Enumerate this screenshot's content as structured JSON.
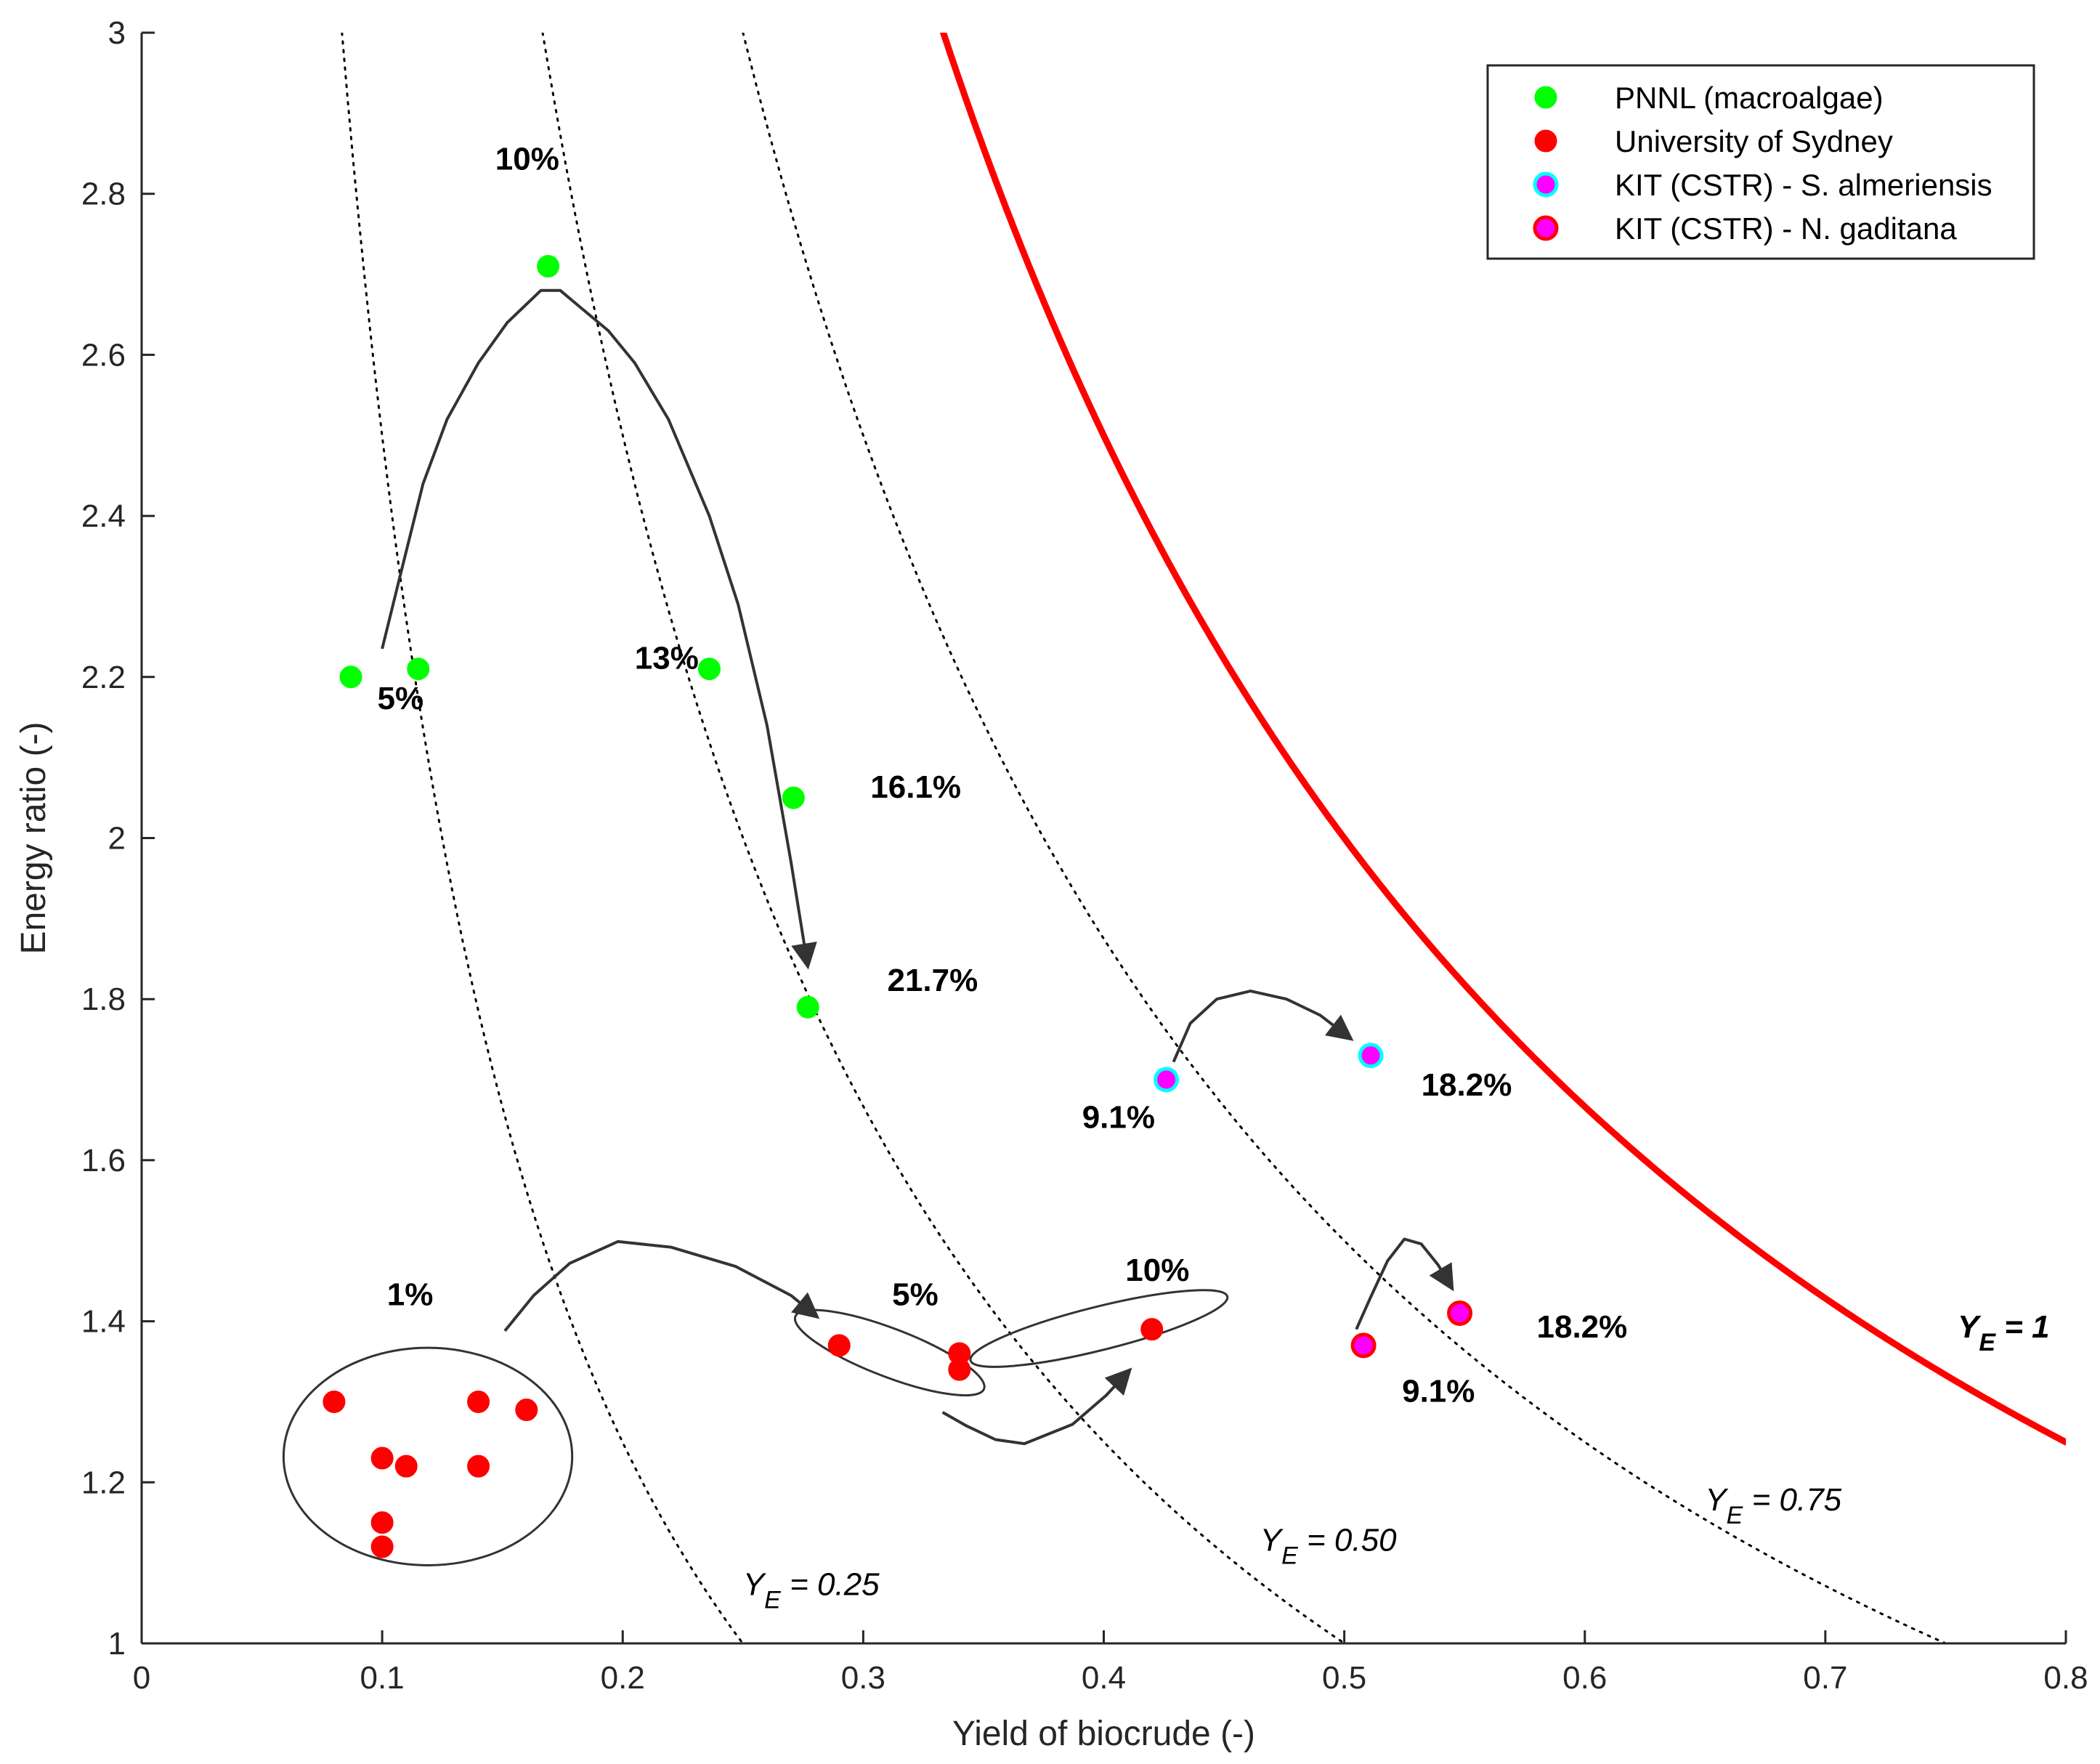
{
  "chart_data": {
    "type": "scatter",
    "xlabel": "Yield of biocrude (-)",
    "ylabel": "Energy ratio (-)",
    "xlim": [
      0,
      0.8
    ],
    "ylim": [
      1,
      3
    ],
    "xticks": [
      {
        "value": 0,
        "label": "0"
      },
      {
        "value": 0.1,
        "label": "0.1"
      },
      {
        "value": 0.2,
        "label": "0.2"
      },
      {
        "value": 0.3,
        "label": "0.3"
      },
      {
        "value": 0.4,
        "label": "0.4"
      },
      {
        "value": 0.5,
        "label": "0.5"
      },
      {
        "value": 0.6,
        "label": "0.6"
      },
      {
        "value": 0.7,
        "label": "0.7"
      },
      {
        "value": 0.8,
        "label": "0.8"
      }
    ],
    "yticks": [
      {
        "value": 1,
        "label": "1"
      },
      {
        "value": 1.2,
        "label": "1.2"
      },
      {
        "value": 1.4,
        "label": "1.4"
      },
      {
        "value": 1.6,
        "label": "1.6"
      },
      {
        "value": 1.8,
        "label": "1.8"
      },
      {
        "value": 2,
        "label": "2"
      },
      {
        "value": 2.2,
        "label": "2.2"
      },
      {
        "value": 2.4,
        "label": "2.4"
      },
      {
        "value": 2.6,
        "label": "2.6"
      },
      {
        "value": 2.8,
        "label": "2.8"
      },
      {
        "value": 3,
        "label": "3"
      }
    ],
    "legend_position": "top-right",
    "series": [
      {
        "name": "PNNL (macroalgae)",
        "fill": "#00ff00",
        "edge": "#00ff00",
        "points": [
          [
            0.087,
            2.2
          ],
          [
            0.115,
            2.21
          ],
          [
            0.169,
            2.71
          ],
          [
            0.236,
            2.21
          ],
          [
            0.271,
            2.05
          ],
          [
            0.277,
            1.79
          ]
        ]
      },
      {
        "name": "University of Sydney",
        "fill": "#ff0000",
        "edge": "#ff0000",
        "points": [
          [
            0.08,
            1.3
          ],
          [
            0.1,
            1.23
          ],
          [
            0.11,
            1.22
          ],
          [
            0.1,
            1.15
          ],
          [
            0.1,
            1.12
          ],
          [
            0.14,
            1.3
          ],
          [
            0.14,
            1.22
          ],
          [
            0.16,
            1.29
          ],
          [
            0.29,
            1.37
          ],
          [
            0.34,
            1.36
          ],
          [
            0.34,
            1.34
          ],
          [
            0.42,
            1.39
          ]
        ]
      },
      {
        "name": "KIT (CSTR) - S. almeriensis",
        "fill": "#ff00ff",
        "edge": "#00ffff",
        "points": [
          [
            0.426,
            1.7
          ],
          [
            0.511,
            1.73
          ]
        ]
      },
      {
        "name": "KIT (CSTR) - N. gaditana",
        "fill": "#ff00ff",
        "edge": "#ff0000",
        "points": [
          [
            0.508,
            1.37
          ],
          [
            0.548,
            1.41
          ]
        ]
      }
    ],
    "iso_curves": [
      {
        "ye": 0.25,
        "label_main": "Y",
        "label_sub": "E",
        "label_rest": " = 0.25",
        "color": "#000000",
        "style": "dotted",
        "x0": 0.0833
      },
      {
        "ye": 0.5,
        "label_main": "Y",
        "label_sub": "E",
        "label_rest": " = 0.50",
        "color": "#000000",
        "style": "dotted",
        "x0": 0.1667
      },
      {
        "ye": 0.75,
        "label_main": "Y",
        "label_sub": "E",
        "label_rest": " = 0.75",
        "color": "#000000",
        "style": "dotted",
        "x0": 0.25
      },
      {
        "ye": 1.0,
        "label_main": "Y",
        "label_sub": "E",
        "label_rest": " = 1",
        "color": "#ff0000",
        "style": "solid",
        "x0": 0.3333
      }
    ],
    "annotations": [
      {
        "text": "10%",
        "x": 0.147,
        "y": 2.83
      },
      {
        "text": "5%",
        "x": 0.098,
        "y": 2.16
      },
      {
        "text": "13%",
        "x": 0.205,
        "y": 2.21
      },
      {
        "text": "16.1%",
        "x": 0.303,
        "y": 2.05
      },
      {
        "text": "21.7%",
        "x": 0.31,
        "y": 1.81
      },
      {
        "text": "9.1%",
        "x": 0.391,
        "y": 1.64
      },
      {
        "text": "18.2%",
        "x": 0.532,
        "y": 1.68
      },
      {
        "text": "1%",
        "x": 0.102,
        "y": 1.42
      },
      {
        "text": "5%",
        "x": 0.312,
        "y": 1.42
      },
      {
        "text": "10%",
        "x": 0.409,
        "y": 1.45
      },
      {
        "text": "9.1%",
        "x": 0.524,
        "y": 1.3
      },
      {
        "text": "18.2%",
        "x": 0.58,
        "y": 1.38
      }
    ],
    "arrows": [
      {
        "points": [
          [
            0.1,
            2.235
          ],
          [
            0.107,
            2.32
          ],
          [
            0.117,
            2.44
          ],
          [
            0.127,
            2.52
          ],
          [
            0.14,
            2.59
          ],
          [
            0.152,
            2.64
          ],
          [
            0.166,
            2.68
          ],
          [
            0.174,
            2.68
          ],
          [
            0.182,
            2.66
          ],
          [
            0.194,
            2.63
          ],
          [
            0.205,
            2.59
          ],
          [
            0.219,
            2.52
          ],
          [
            0.236,
            2.4
          ],
          [
            0.248,
            2.29
          ],
          [
            0.26,
            2.14
          ],
          [
            0.27,
            1.97
          ],
          [
            0.277,
            1.84
          ]
        ]
      },
      {
        "points": [
          [
            0.429,
            1.722
          ],
          [
            0.436,
            1.77
          ],
          [
            0.447,
            1.8
          ],
          [
            0.461,
            1.81
          ],
          [
            0.476,
            1.8
          ],
          [
            0.49,
            1.78
          ],
          [
            0.503,
            1.75
          ]
        ]
      },
      {
        "points": [
          [
            0.151,
            1.388
          ],
          [
            0.163,
            1.432
          ],
          [
            0.178,
            1.472
          ],
          [
            0.198,
            1.499
          ],
          [
            0.22,
            1.492
          ],
          [
            0.247,
            1.468
          ],
          [
            0.27,
            1.432
          ],
          [
            0.281,
            1.405
          ]
        ]
      },
      {
        "points": [
          [
            0.333,
            1.287
          ],
          [
            0.343,
            1.27
          ],
          [
            0.355,
            1.253
          ],
          [
            0.367,
            1.248
          ],
          [
            0.387,
            1.272
          ],
          [
            0.401,
            1.308
          ],
          [
            0.411,
            1.34
          ]
        ]
      },
      {
        "points": [
          [
            0.505,
            1.39
          ],
          [
            0.511,
            1.43
          ],
          [
            0.518,
            1.475
          ],
          [
            0.525,
            1.502
          ],
          [
            0.532,
            1.496
          ],
          [
            0.539,
            1.47
          ],
          [
            0.545,
            1.44
          ]
        ]
      }
    ],
    "ellipses": [
      {
        "cx": 0.119,
        "cy": 1.232,
        "rx": 0.06,
        "ry": 0.135,
        "rot": 0
      },
      {
        "cx": 0.311,
        "cy": 1.361,
        "rx": 0.042,
        "ry": 0.03,
        "rot": 21
      },
      {
        "cx": 0.398,
        "cy": 1.391,
        "rx": 0.055,
        "ry": 0.027,
        "rot": -14
      }
    ]
  }
}
